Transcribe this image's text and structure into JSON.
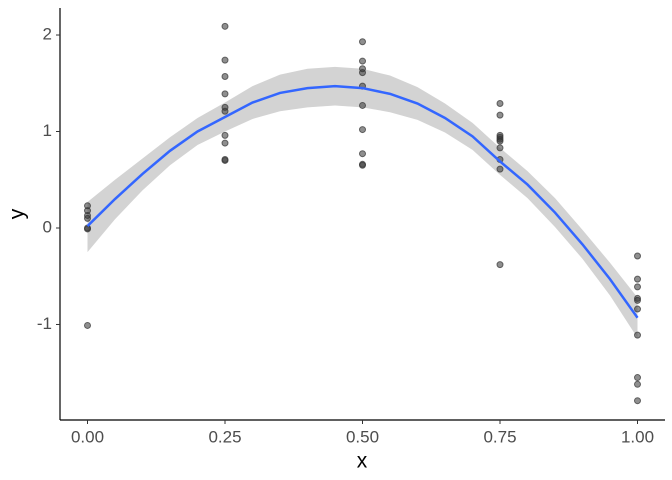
{
  "chart_data": {
    "type": "scatter",
    "x_label": "x",
    "y_label": "y",
    "xlim": [
      -0.05,
      1.05
    ],
    "ylim": [
      -1.99,
      2.28
    ],
    "xticks": [
      {
        "value": 0,
        "label": "0.00"
      },
      {
        "value": 0.25,
        "label": "0.25"
      },
      {
        "value": 0.5,
        "label": "0.50"
      },
      {
        "value": 0.75,
        "label": "0.75"
      },
      {
        "value": 1,
        "label": "1.00"
      }
    ],
    "yticks": [
      2,
      1,
      0,
      -1
    ],
    "grid": false,
    "points": {
      "color": "#333333",
      "x": [
        0,
        0,
        0,
        0,
        0,
        0,
        0,
        0.25,
        0.25,
        0.25,
        0.25,
        0.25,
        0.25,
        0.25,
        0.25,
        0.25,
        0.25,
        0.5,
        0.5,
        0.5,
        0.5,
        0.5,
        0.5,
        0.5,
        0.5,
        0.5,
        0.5,
        0.75,
        0.75,
        0.75,
        0.75,
        0.75,
        0.75,
        0.75,
        0.75,
        0.75,
        0.75,
        1,
        1,
        1,
        1,
        1,
        1,
        1,
        1,
        1,
        1
      ],
      "y": [
        0.23,
        0.18,
        0.13,
        0.1,
        0.0,
        -0.01,
        -1.01,
        2.09,
        1.74,
        1.57,
        1.39,
        1.25,
        1.21,
        0.96,
        0.88,
        0.71,
        0.7,
        1.93,
        1.73,
        1.65,
        1.61,
        1.47,
        1.27,
        1.02,
        0.77,
        0.66,
        0.65,
        1.29,
        1.17,
        0.96,
        0.94,
        0.92,
        0.9,
        0.83,
        0.71,
        0.61,
        -0.38,
        -0.29,
        -0.53,
        -0.61,
        -0.73,
        -0.75,
        -0.84,
        -1.11,
        -1.55,
        -1.62,
        -1.79
      ]
    },
    "smooth": {
      "color": "#3366ff",
      "band_color": "#d3d3d3",
      "x": [
        0,
        0.05,
        0.1,
        0.15,
        0.2,
        0.25,
        0.3,
        0.35,
        0.4,
        0.45,
        0.5,
        0.55,
        0.6,
        0.65,
        0.7,
        0.75,
        0.8,
        0.85,
        0.9,
        0.95,
        1
      ],
      "y": [
        0.02,
        0.3,
        0.56,
        0.8,
        1.0,
        1.15,
        1.3,
        1.4,
        1.45,
        1.47,
        1.45,
        1.39,
        1.29,
        1.14,
        0.95,
        0.69,
        0.45,
        0.16,
        -0.17,
        -0.53,
        -0.93
      ],
      "lower": [
        -0.25,
        0.09,
        0.39,
        0.65,
        0.86,
        1.0,
        1.13,
        1.21,
        1.25,
        1.27,
        1.25,
        1.2,
        1.12,
        0.99,
        0.81,
        0.55,
        0.31,
        0.01,
        -0.32,
        -0.7,
        -1.14
      ],
      "upper": [
        0.27,
        0.5,
        0.72,
        0.94,
        1.14,
        1.3,
        1.47,
        1.59,
        1.65,
        1.67,
        1.65,
        1.58,
        1.46,
        1.29,
        1.09,
        0.83,
        0.59,
        0.31,
        -0.02,
        -0.36,
        -0.72
      ]
    }
  }
}
